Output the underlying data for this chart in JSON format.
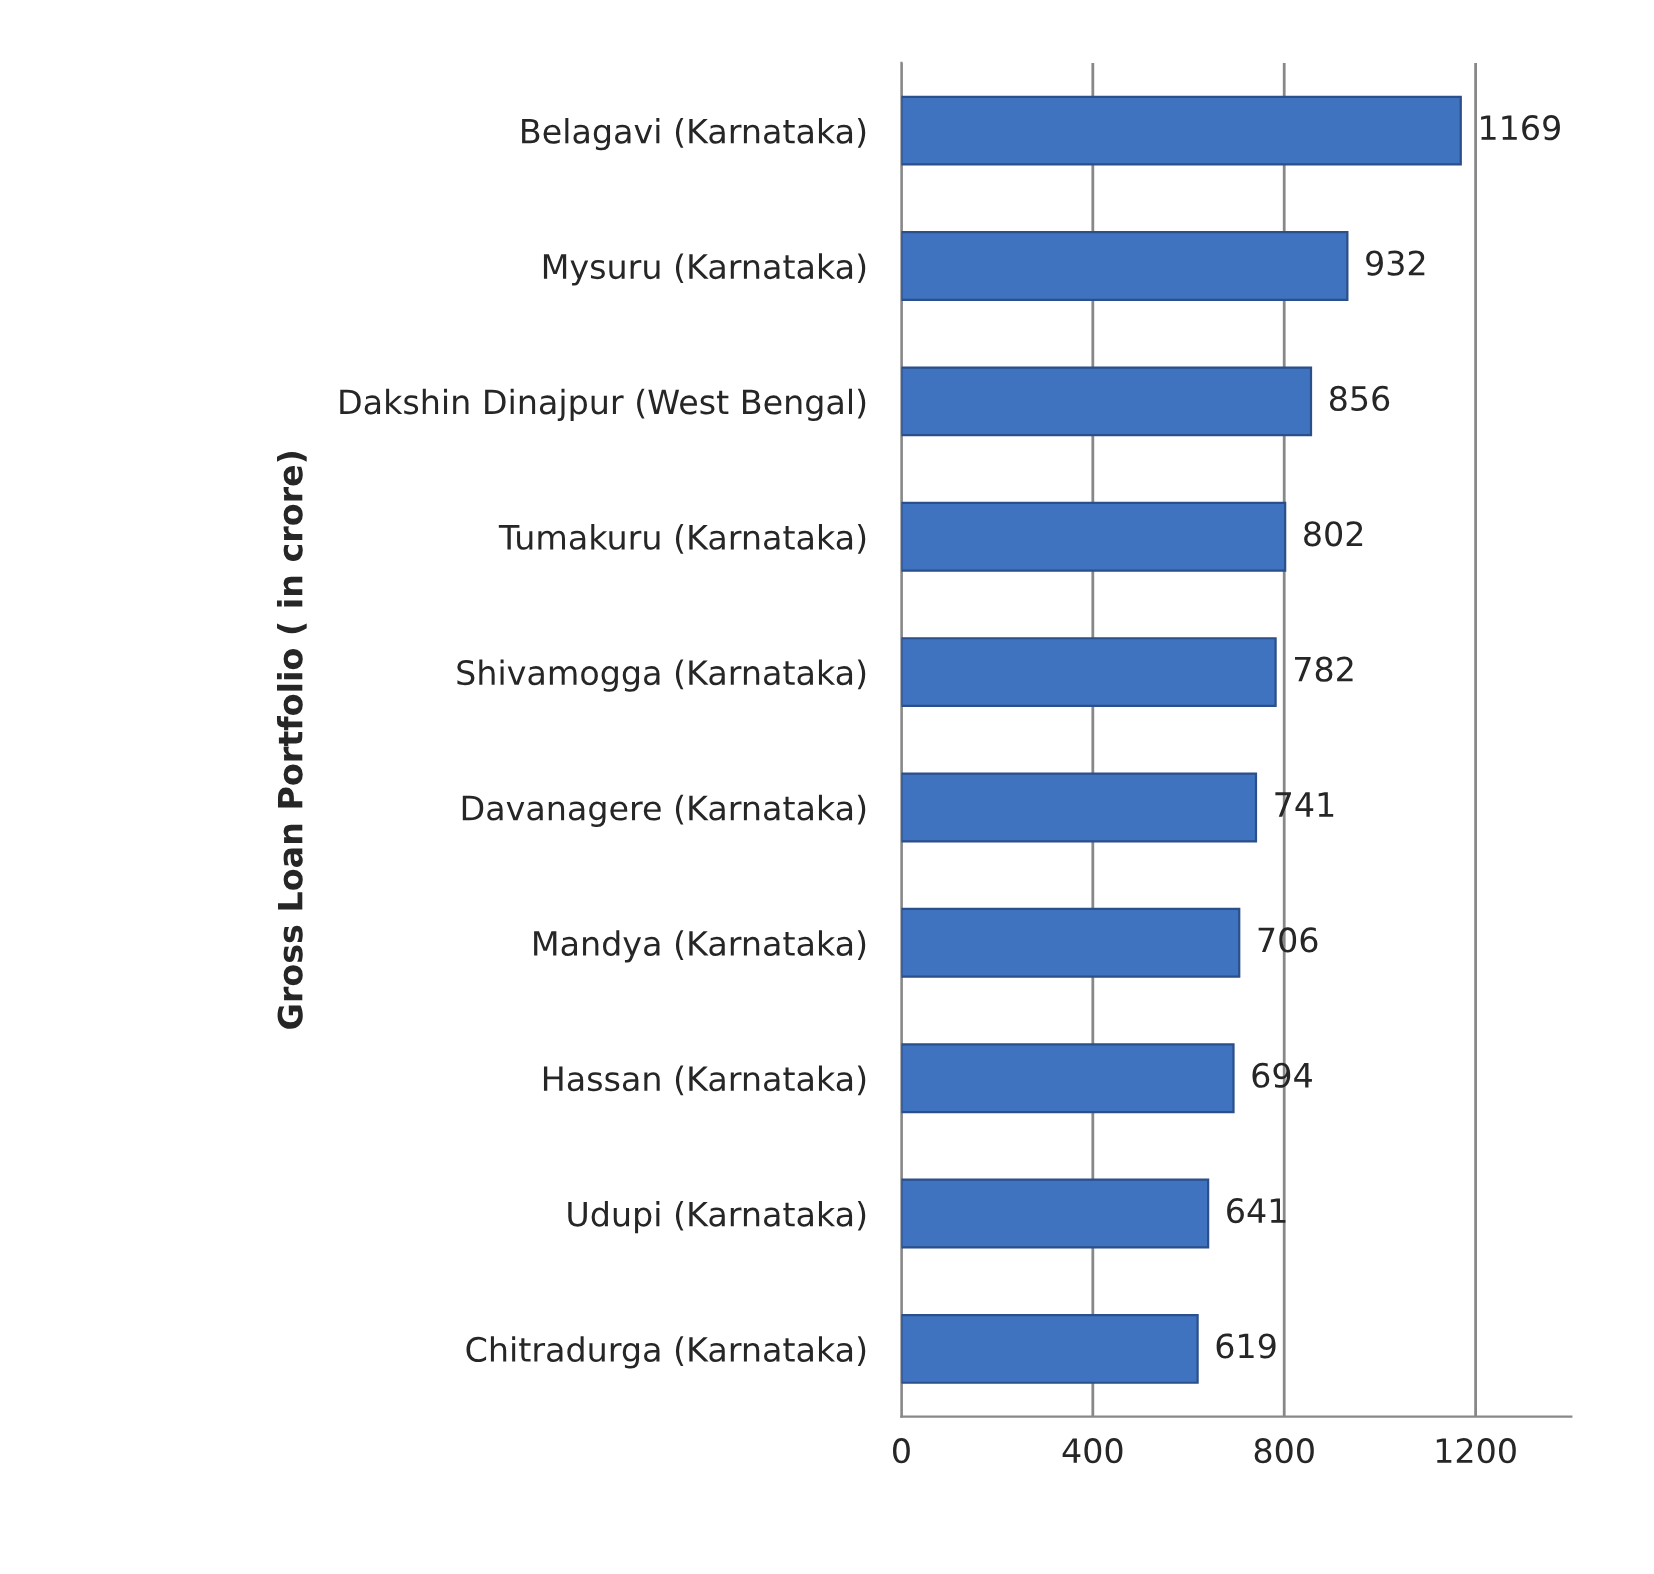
{
  "chart_data": {
    "type": "bar",
    "orientation": "horizontal",
    "ylabel": "Gross Loan Portfolio ( in crore)",
    "categories": [
      "Belagavi (Karnataka)",
      "Mysuru (Karnataka)",
      "Dakshin Dinajpur (West Bengal)",
      "Tumakuru (Karnataka)",
      "Shivamogga (Karnataka)",
      "Davanagere (Karnataka)",
      "Mandya (Karnataka)",
      "Hassan (Karnataka)",
      "Udupi (Karnataka)",
      "Chitradurga (Karnataka)"
    ],
    "values": [
      1169,
      932,
      856,
      802,
      782,
      741,
      706,
      694,
      641,
      619
    ],
    "color": "#3f73bf",
    "xlim": [
      0,
      1400
    ],
    "xticks": [
      0,
      400,
      800,
      1200
    ],
    "grid": "x",
    "data_labels": true
  }
}
